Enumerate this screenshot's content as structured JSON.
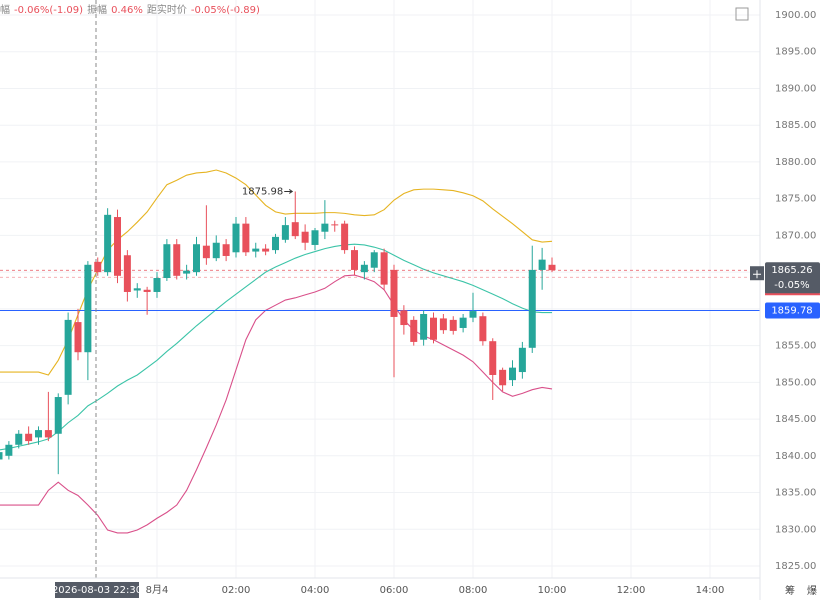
{
  "chart_data": {
    "type": "candlestick",
    "header": [
      {
        "text": "幅",
        "color": "#888888"
      },
      {
        "text": "-0.06%(-1.09)",
        "color": "#e8505b"
      },
      {
        "text": "振幅",
        "color": "#888888"
      },
      {
        "text": "0.46%",
        "color": "#e8505b"
      },
      {
        "text": "距实时价",
        "color": "#888888"
      },
      {
        "text": "-0.05%(-0.89)",
        "color": "#e8505b"
      }
    ],
    "open": [
      1839.5,
      1840,
      1841.5,
      1843,
      1842.5,
      1843.5,
      1843,
      1848.3,
      1858.2,
      1854.1,
      1866.4,
      1865,
      1872.5,
      1867.3,
      1862.5,
      1862.6,
      1862.3,
      1864.2,
      1868.8,
      1864.8,
      1865,
      1868.6,
      1866.9,
      1868.8,
      1867.7,
      1871.6,
      1867.8,
      1868.2,
      1868,
      1869.4,
      1871.8,
      1870.5,
      1868.7,
      1870.5,
      1871.5,
      1871.6,
      1868,
      1865,
      1865.6,
      1867.7,
      1865.3,
      1859.8,
      1858.5,
      1855.8,
      1858.8,
      1858.7,
      1858.5,
      1857.4,
      1858.8,
      1859,
      1855.6,
      1851.7,
      1850.3,
      1851.4,
      1854.7,
      1865.3,
      1866
    ],
    "high": [
      1841,
      1842,
      1843.5,
      1844,
      1844,
      1848.7,
      1848.5,
      1859.5,
      1860,
      1866.5,
      1867,
      1873.7,
      1873.5,
      1868,
      1863.5,
      1863,
      1865,
      1869.5,
      1869.5,
      1866,
      1869.8,
      1874.1,
      1870,
      1869.5,
      1872.5,
      1872.5,
      1869,
      1868.8,
      1870.2,
      1872.5,
      1875.98,
      1871.5,
      1871,
      1874.8,
      1872,
      1872,
      1868.5,
      1866.5,
      1868,
      1868.2,
      1866,
      1860.5,
      1859,
      1859.8,
      1859.5,
      1859.3,
      1859,
      1859.3,
      1862.2,
      1859.5,
      1856,
      1852,
      1853,
      1855.5,
      1868.6,
      1868.3,
      1867
    ],
    "low": [
      1838.5,
      1839.5,
      1841,
      1841.5,
      1841.5,
      1842,
      1837.5,
      1847,
      1853,
      1850.3,
      1864.5,
      1864.5,
      1863.5,
      1861,
      1861.5,
      1859.2,
      1861.5,
      1863.8,
      1864,
      1864,
      1864.5,
      1866,
      1866.5,
      1866.5,
      1867,
      1867.2,
      1867,
      1867.3,
      1867.5,
      1869,
      1869.5,
      1868,
      1868,
      1869.5,
      1870.5,
      1867.5,
      1864.6,
      1864,
      1865,
      1862.6,
      1850.7,
      1856.5,
      1855,
      1855,
      1855.3,
      1856.6,
      1856.5,
      1856.8,
      1858.2,
      1855,
      1847.6,
      1848.8,
      1849.5,
      1850.5,
      1854,
      1862.6,
      1865
    ],
    "close": [
      1840.5,
      1841.5,
      1843,
      1842,
      1843.5,
      1842.5,
      1848,
      1858.5,
      1854.1,
      1866,
      1865,
      1872.8,
      1864.5,
      1862.3,
      1862.8,
      1862.3,
      1864.2,
      1868.8,
      1864.5,
      1865.2,
      1868.8,
      1866.9,
      1869,
      1867.2,
      1871.6,
      1867.7,
      1868.2,
      1867.8,
      1869.8,
      1871.4,
      1869.9,
      1869,
      1870.7,
      1871.6,
      1871.4,
      1868,
      1865.3,
      1866,
      1867.7,
      1863.3,
      1858.9,
      1857.8,
      1855.5,
      1859.3,
      1855.8,
      1857.1,
      1857,
      1858.8,
      1859.7,
      1855.6,
      1851,
      1849.6,
      1852,
      1854.7,
      1865.3,
      1866.7,
      1865.26
    ],
    "up_color": "#26a69a",
    "down_color": "#e8505b",
    "bands": [
      {
        "color": "#e6b422",
        "values": [
          1851.4,
          1851.4,
          1851.4,
          1851.4,
          1851.4,
          1851,
          1853,
          1855.8,
          1859.2,
          1862.6,
          1865.3,
          1868,
          1869.4,
          1870.5,
          1871.8,
          1873.2,
          1875.1,
          1876.9,
          1877.5,
          1878.2,
          1878.5,
          1878.6,
          1878.9,
          1878.5,
          1877.8,
          1876.9,
          1875.5,
          1874.1,
          1873.2,
          1872.9,
          1873,
          1873,
          1873,
          1873.1,
          1873.1,
          1873,
          1872.8,
          1872.7,
          1872.8,
          1873.5,
          1874.8,
          1875.7,
          1876.2,
          1876.3,
          1876.3,
          1876.2,
          1876.1,
          1875.8,
          1875.4,
          1874.7,
          1873.6,
          1872.6,
          1871.6,
          1870.5,
          1869.4,
          1869.1,
          1869.2
        ]
      },
      {
        "color": "#3cc4a8",
        "values": [
          1840.8,
          1841,
          1841.3,
          1841.6,
          1841.9,
          1842.3,
          1843.3,
          1844.5,
          1845.5,
          1846.8,
          1847.6,
          1848.5,
          1849.5,
          1850.3,
          1851,
          1852,
          1853,
          1854.2,
          1855.3,
          1856.5,
          1857.7,
          1858.8,
          1859.9,
          1861,
          1862,
          1863,
          1864,
          1865,
          1865.7,
          1866.3,
          1866.9,
          1867.4,
          1867.8,
          1868.2,
          1868.5,
          1868.7,
          1868.8,
          1868.7,
          1868.4,
          1868,
          1867.3,
          1866.6,
          1866,
          1865.4,
          1864.9,
          1864.5,
          1864.1,
          1863.7,
          1863.2,
          1862.6,
          1862,
          1861.4,
          1860.7,
          1860.1,
          1859.6,
          1859.5,
          1859.5
        ]
      },
      {
        "color": "#d9508a",
        "values": [
          1833.3,
          1833.3,
          1833.3,
          1833.3,
          1833.3,
          1835.3,
          1836.4,
          1835.3,
          1834.6,
          1833.3,
          1831.9,
          1829.9,
          1829.5,
          1829.5,
          1829.9,
          1830.6,
          1831.5,
          1832.3,
          1833.3,
          1835.3,
          1838.1,
          1841.1,
          1844.2,
          1847.6,
          1851.7,
          1855.8,
          1858.5,
          1859.8,
          1860.5,
          1861.2,
          1861.5,
          1861.9,
          1862.3,
          1862.8,
          1863.7,
          1864.5,
          1864.6,
          1864.2,
          1863.7,
          1862.6,
          1860.5,
          1858.5,
          1857.1,
          1856.3,
          1855.8,
          1855.1,
          1854.4,
          1853.7,
          1852.8,
          1851.4,
          1850,
          1848.7,
          1848.1,
          1848.5,
          1849,
          1849.3,
          1849.1
        ]
      }
    ],
    "ref_line": 1859.78,
    "ref_color": "#2962ff",
    "last_change": "-0.05%",
    "crosshair_label": "2026-08-03 22:30",
    "ylim": [
      1823.5,
      1901.5
    ],
    "yticks": [
      {
        "value": 1825,
        "label": "1825.00"
      },
      {
        "value": 1830,
        "label": "1830.00"
      },
      {
        "value": 1835,
        "label": "1835.00"
      },
      {
        "value": 1840,
        "label": "1840.00"
      },
      {
        "value": 1845,
        "label": "1845.00"
      },
      {
        "value": 1850,
        "label": "1850.00"
      },
      {
        "value": 1855,
        "label": "1855.00"
      },
      {
        "value": 1860,
        "label": "1860.00"
      },
      {
        "value": 1865,
        "label": "1865.00"
      },
      {
        "value": 1870,
        "label": "1870.00"
      },
      {
        "value": 1875,
        "label": "1875.00"
      },
      {
        "value": 1880,
        "label": "1880.00"
      },
      {
        "value": 1885,
        "label": "1885.00"
      },
      {
        "value": 1890,
        "label": "1890.00"
      },
      {
        "value": 1895,
        "label": "1895.00"
      },
      {
        "value": 1900,
        "label": "1900.00"
      }
    ],
    "xticks": [
      "8月4",
      "02:00",
      "04:00",
      "06:00",
      "08:00",
      "10:00",
      "12:00",
      "14:00"
    ],
    "corner_labels": [
      "筹",
      "爆"
    ],
    "grid": true
  }
}
